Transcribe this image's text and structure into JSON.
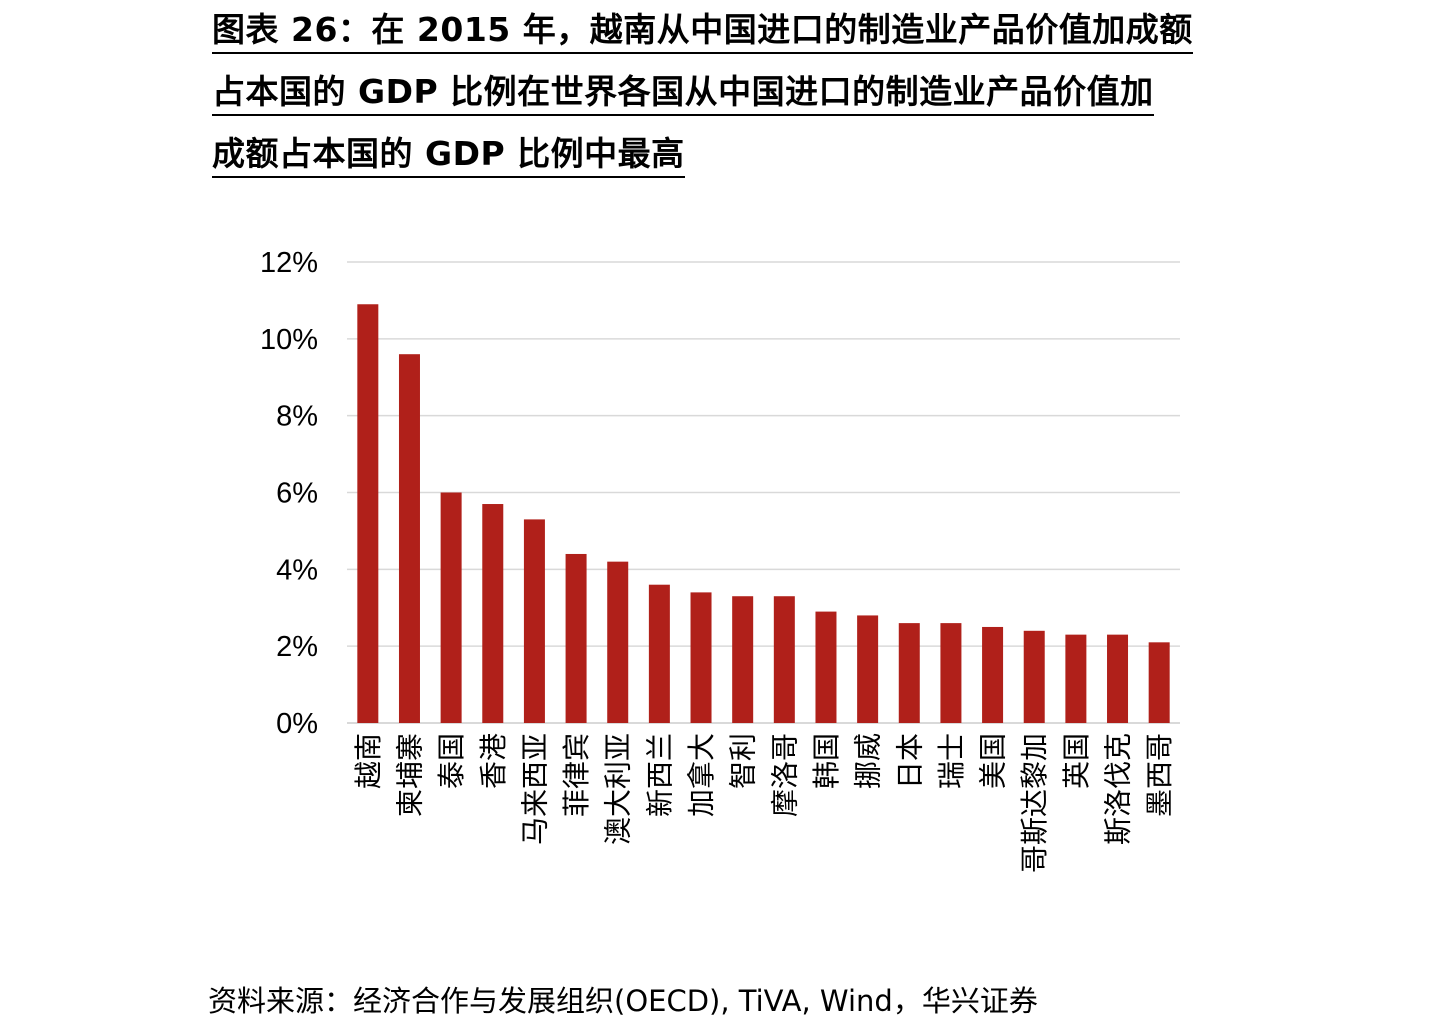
{
  "title_lines": [
    "图表 26：在 2015 年，越南从中国进口的制造业产品价值加成额",
    "占本国的 GDP 比例在世界各国从中国进口的制造业产品价值加",
    "成额占本国的 GDP 比例中最高"
  ],
  "source": "资料来源：经济合作与发展组织(OECD), TiVA, Wind，华兴证券",
  "colors": {
    "bar": "#b0201a",
    "grid": "#d9d9d9"
  },
  "chart_data": {
    "type": "bar",
    "title": "",
    "xlabel": "",
    "ylabel": "",
    "ylim": [
      0,
      12
    ],
    "y_ticks": [
      "0%",
      "2%",
      "4%",
      "6%",
      "8%",
      "10%",
      "12%"
    ],
    "grid": true,
    "categories": [
      "越南",
      "柬埔寨",
      "泰国",
      "香港",
      "马来西亚",
      "菲律宾",
      "澳大利亚",
      "新西兰",
      "加拿大",
      "智利",
      "摩洛哥",
      "韩国",
      "挪威",
      "日本",
      "瑞士",
      "美国",
      "哥斯达黎加",
      "英国",
      "斯洛伐克",
      "墨西哥"
    ],
    "values": [
      10.9,
      9.6,
      6.0,
      5.7,
      5.3,
      4.4,
      4.2,
      3.6,
      3.4,
      3.3,
      3.3,
      2.9,
      2.8,
      2.6,
      2.6,
      2.5,
      2.4,
      2.3,
      2.3,
      2.1
    ]
  }
}
